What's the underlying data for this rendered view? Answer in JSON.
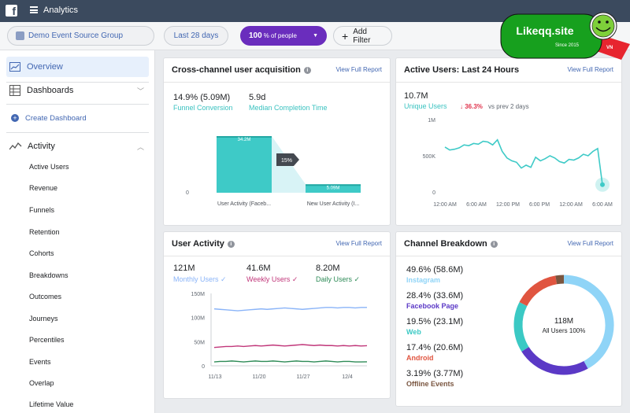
{
  "app": {
    "title": "Analytics",
    "logo": "f"
  },
  "filters": {
    "source_group": "Demo Event Source Group",
    "date_range": "Last 28 days",
    "people_value": "100",
    "people_suffix": "% of people",
    "add_filter": "Add Filter"
  },
  "sidebar": {
    "overview": "Overview",
    "dashboards": "Dashboards",
    "create_dashboard": "Create Dashboard",
    "activity": "Activity",
    "activity_items": [
      "Active Users",
      "Revenue",
      "Funnels",
      "Retention",
      "Cohorts",
      "Breakdowns",
      "Outcomes",
      "Journeys",
      "Percentiles",
      "Events",
      "Overlap",
      "Lifetime Value"
    ]
  },
  "acquisition": {
    "title": "Cross-channel user acquisition",
    "link": "View Full Report",
    "conversion_value": "14.9% (5.09M)",
    "conversion_label": "Funnel Conversion",
    "median_value": "5.9d",
    "median_label": "Median Completion Time",
    "chart_data": {
      "type": "bar",
      "categories": [
        "User Activity (Faceb...",
        "New User Activity (I..."
      ],
      "values": [
        34.2,
        5.09
      ],
      "value_labels": [
        "34.2M",
        "5.09M"
      ],
      "conversion_label": "15%",
      "ytick": "0"
    }
  },
  "active24": {
    "title": "Active Users: Last 24 Hours",
    "link": "View Full Report",
    "value": "10.7M",
    "label": "Unique Users",
    "change": "↓ 36.3%",
    "change_suffix": "vs prev 2 days",
    "chart_data": {
      "type": "line",
      "yticks": [
        "1M",
        "500K",
        "0"
      ],
      "xticks": [
        "12:00 AM",
        "6:00 AM",
        "12:00 PM",
        "6:00 PM",
        "12:00 AM",
        "6:00 AM"
      ],
      "ylim": [
        0,
        1000
      ],
      "values": [
        620,
        580,
        590,
        610,
        650,
        640,
        670,
        660,
        700,
        690,
        650,
        720,
        560,
        470,
        430,
        410,
        330,
        370,
        340,
        480,
        430,
        460,
        500,
        470,
        420,
        400,
        450,
        440,
        470,
        520,
        500,
        560,
        600,
        100
      ]
    }
  },
  "user_activity": {
    "title": "User Activity",
    "link": "View Full Report",
    "metrics": [
      {
        "value": "121M",
        "label": "Monthly Users ✓",
        "color": "#8ab4f8"
      },
      {
        "value": "41.6M",
        "label": "Weekly Users ✓",
        "color": "#c1377a"
      },
      {
        "value": "8.20M",
        "label": "Daily Users ✓",
        "color": "#2e8b57"
      }
    ],
    "chart_data": {
      "type": "line",
      "yticks": [
        "150M",
        "100M",
        "50M",
        "0"
      ],
      "xticks": [
        "11/13",
        "11/20",
        "11/27",
        "12/4"
      ],
      "ylim": [
        0,
        150
      ],
      "series": [
        {
          "name": "Monthly Users",
          "color": "#8ab4f8",
          "values": [
            118,
            117,
            116,
            115,
            114,
            115,
            116,
            117,
            118,
            117,
            118,
            119,
            120,
            119,
            118,
            117,
            118,
            119,
            120,
            121,
            121,
            120,
            121,
            121,
            120,
            121,
            121
          ]
        },
        {
          "name": "Weekly Users",
          "color": "#c1377a",
          "values": [
            38,
            39,
            40,
            40,
            41,
            40,
            41,
            42,
            41,
            42,
            43,
            42,
            41,
            42,
            43,
            44,
            43,
            42,
            43,
            42,
            42,
            41,
            42,
            41,
            42,
            41,
            41.6
          ]
        },
        {
          "name": "Daily Users",
          "color": "#2e8b57",
          "values": [
            8,
            9,
            9,
            10,
            9,
            8,
            9,
            10,
            9,
            9,
            10,
            9,
            8,
            9,
            10,
            9,
            9,
            8,
            9,
            10,
            9,
            8,
            9,
            9,
            8,
            8,
            8.2
          ]
        }
      ]
    }
  },
  "channel": {
    "title": "Channel Breakdown",
    "link": "View Full Report",
    "total": "118M",
    "total_label": "All Users 100%",
    "items": [
      {
        "value": "49.6% (58.6M)",
        "label": "Instagram",
        "color": "#8fd4f7"
      },
      {
        "value": "28.4% (33.6M)",
        "label": "Facebook Page",
        "color": "#5b39c6"
      },
      {
        "value": "19.5% (23.1M)",
        "label": "Web",
        "color": "#3bc9c4"
      },
      {
        "value": "17.4% (20.6M)",
        "label": "Android",
        "color": "#e05540"
      },
      {
        "value": "3.19% (3.77M)",
        "label": "Offline Events",
        "color": "#7a5640"
      }
    ],
    "chart_data": {
      "type": "pie",
      "labels": [
        "Instagram",
        "Facebook Page",
        "Web",
        "Android",
        "Offline Events"
      ],
      "values": [
        49.6,
        28.4,
        19.5,
        17.4,
        3.19
      ]
    }
  },
  "watermark": {
    "site": "Likeqq.site",
    "since": "Since 2015",
    "vn": "VN"
  }
}
